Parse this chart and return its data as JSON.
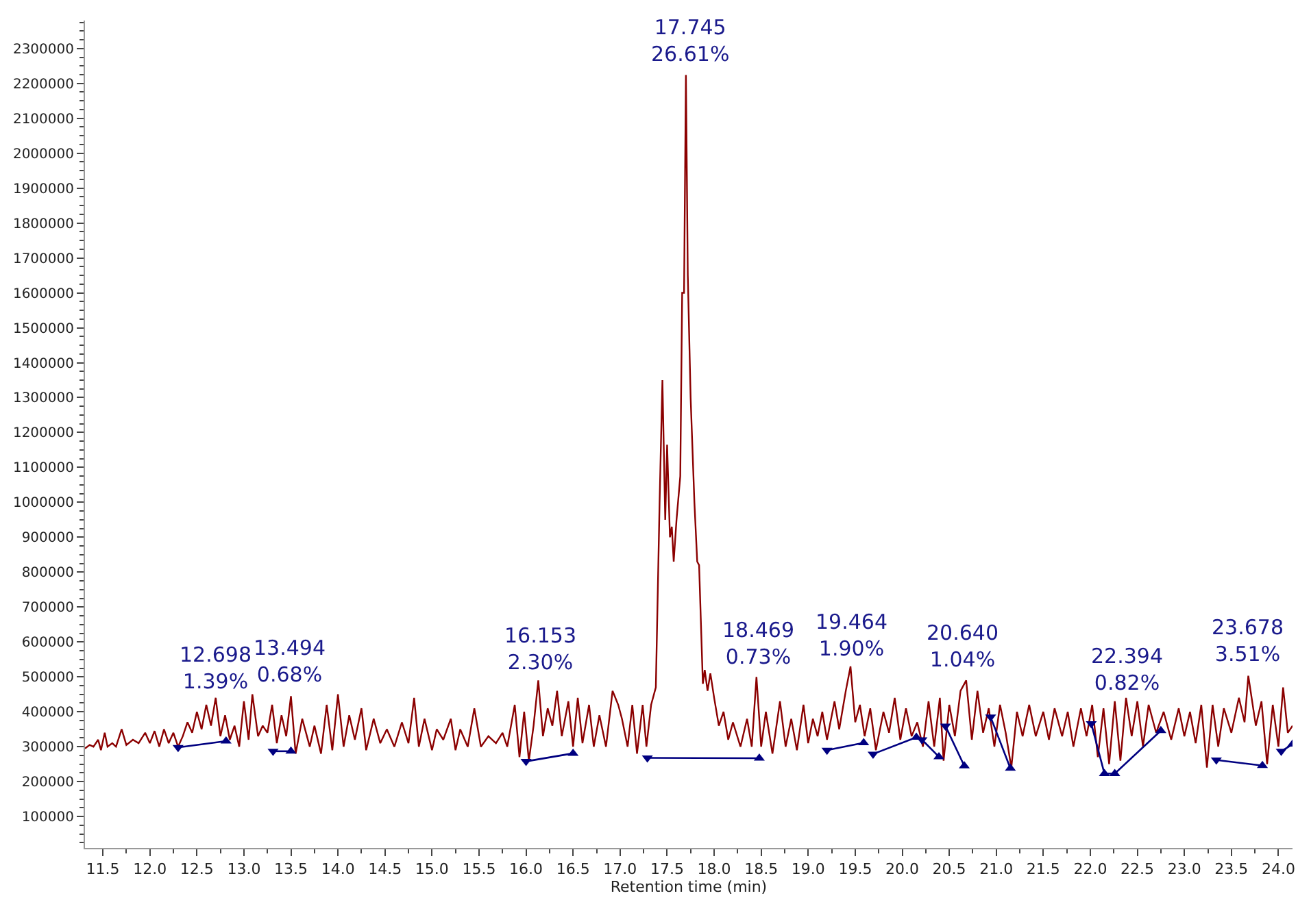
{
  "chart_data": {
    "type": "line",
    "xlabel": "Retention time (min)",
    "xlim": [
      11.31,
      24.15
    ],
    "ylim": [
      10000,
      2380000
    ],
    "xticks": [
      11.5,
      {
        "value": 12,
        "label": "12.0"
      },
      12.5,
      {
        "value": 13,
        "label": "13.0"
      },
      13.5,
      {
        "value": 14,
        "label": "14.0"
      },
      14.5,
      {
        "value": 15,
        "label": "15.0"
      },
      15.5,
      {
        "value": 16,
        "label": "16.0"
      },
      16.5,
      {
        "value": 17,
        "label": "17.0"
      },
      17.5,
      {
        "value": 18,
        "label": "18.0"
      },
      18.5,
      {
        "value": 19,
        "label": "19.0"
      },
      19.5,
      {
        "value": 20,
        "label": "20.0"
      },
      20.5,
      {
        "value": 21,
        "label": "21.0"
      },
      21.5,
      {
        "value": 22,
        "label": "22.0"
      },
      22.5,
      {
        "value": 23,
        "label": "23.0"
      },
      23.5,
      {
        "value": 24,
        "label": "24.0"
      }
    ],
    "yticks": [
      100000,
      200000,
      300000,
      400000,
      500000,
      600000,
      700000,
      800000,
      900000,
      1000000,
      1100000,
      1200000,
      1300000,
      1400000,
      1500000,
      1600000,
      1700000,
      1800000,
      1900000,
      2000000,
      2100000,
      2200000,
      2300000
    ],
    "series": [
      {
        "color": "#8b0000",
        "marker": "none",
        "x": [
          11.31,
          11.36,
          11.4,
          11.45,
          11.48,
          11.52,
          11.55,
          11.6,
          11.64,
          11.7,
          11.75,
          11.82,
          11.88,
          11.95,
          12.0,
          12.05,
          12.1,
          12.15,
          12.2,
          12.25,
          12.3,
          12.35,
          12.4,
          12.45,
          12.5,
          12.55,
          12.6,
          12.65,
          12.7,
          12.75,
          12.8,
          12.85,
          12.9,
          12.95,
          13.0,
          13.05,
          13.09,
          13.15,
          13.2,
          13.25,
          13.3,
          13.35,
          13.4,
          13.45,
          13.5,
          13.55,
          13.62,
          13.7,
          13.75,
          13.82,
          13.88,
          13.94,
          14.0,
          14.06,
          14.12,
          14.18,
          14.25,
          14.3,
          14.38,
          14.45,
          14.52,
          14.6,
          14.68,
          14.75,
          14.81,
          14.86,
          14.92,
          15.0,
          15.05,
          15.12,
          15.2,
          15.25,
          15.3,
          15.38,
          15.45,
          15.52,
          15.6,
          15.68,
          15.75,
          15.8,
          15.88,
          15.93,
          15.98,
          16.03,
          16.08,
          16.13,
          16.18,
          16.23,
          16.28,
          16.33,
          16.38,
          16.45,
          16.5,
          16.55,
          16.6,
          16.67,
          16.72,
          16.78,
          16.85,
          16.92,
          16.98,
          17.02,
          17.08,
          17.13,
          17.18,
          17.24,
          17.28,
          17.33,
          17.38,
          17.42,
          17.45,
          17.48,
          17.5,
          17.53,
          17.55,
          17.57,
          17.6,
          17.64,
          17.66,
          17.68,
          17.7,
          17.72,
          17.75,
          17.79,
          17.82,
          17.84,
          17.86,
          17.88,
          17.9,
          17.93,
          17.96,
          18.0,
          18.05,
          18.1,
          18.15,
          18.2,
          18.28,
          18.35,
          18.4,
          18.45,
          18.5,
          18.55,
          18.62,
          18.7,
          18.76,
          18.82,
          18.88,
          18.95,
          19.0,
          19.05,
          19.1,
          19.15,
          19.2,
          19.28,
          19.33,
          19.4,
          19.45,
          19.5,
          19.55,
          19.6,
          19.66,
          19.72,
          19.8,
          19.86,
          19.92,
          19.98,
          20.04,
          20.1,
          20.16,
          20.22,
          20.28,
          20.34,
          20.4,
          20.44,
          20.5,
          20.56,
          20.62,
          20.68,
          20.74,
          20.8,
          20.86,
          20.92,
          20.98,
          21.04,
          21.1,
          21.16,
          21.22,
          21.28,
          21.35,
          21.42,
          21.5,
          21.56,
          21.62,
          21.7,
          21.76,
          21.82,
          21.9,
          21.96,
          22.02,
          22.08,
          22.14,
          22.2,
          22.26,
          22.32,
          22.38,
          22.44,
          22.5,
          22.56,
          22.62,
          22.7,
          22.78,
          22.86,
          22.94,
          23.0,
          23.06,
          23.12,
          23.18,
          23.24,
          23.3,
          23.36,
          23.42,
          23.5,
          23.58,
          23.64,
          23.68,
          23.76,
          23.82,
          23.88,
          23.94,
          24.0,
          24.05,
          24.1,
          24.15
        ],
        "values": [
          295000,
          305000,
          300000,
          320000,
          290000,
          340000,
          300000,
          310000,
          300000,
          350000,
          305000,
          320000,
          310000,
          340000,
          310000,
          345000,
          300000,
          350000,
          310000,
          340000,
          300000,
          330000,
          370000,
          340000,
          400000,
          350000,
          420000,
          360000,
          440000,
          330000,
          390000,
          320000,
          360000,
          300000,
          430000,
          320000,
          450000,
          330000,
          360000,
          340000,
          420000,
          310000,
          390000,
          330000,
          445000,
          280000,
          380000,
          300000,
          360000,
          280000,
          420000,
          290000,
          450000,
          300000,
          390000,
          320000,
          410000,
          290000,
          380000,
          310000,
          350000,
          300000,
          370000,
          310000,
          440000,
          300000,
          380000,
          290000,
          350000,
          320000,
          380000,
          290000,
          350000,
          300000,
          410000,
          300000,
          330000,
          310000,
          340000,
          300000,
          420000,
          270000,
          400000,
          260000,
          360000,
          490000,
          330000,
          410000,
          360000,
          460000,
          330000,
          430000,
          300000,
          440000,
          310000,
          420000,
          300000,
          390000,
          300000,
          460000,
          420000,
          380000,
          300000,
          420000,
          280000,
          420000,
          300000,
          420000,
          470000,
          1000000,
          1350000,
          950000,
          1165000,
          900000,
          930000,
          830000,
          950000,
          1075000,
          1600000,
          1600000,
          2224000,
          1650000,
          1300000,
          1000000,
          830000,
          820000,
          650000,
          480000,
          520000,
          460000,
          510000,
          440000,
          360000,
          400000,
          320000,
          370000,
          300000,
          380000,
          300000,
          500000,
          300000,
          400000,
          280000,
          430000,
          300000,
          380000,
          290000,
          420000,
          310000,
          380000,
          330000,
          400000,
          320000,
          430000,
          350000,
          460000,
          530000,
          370000,
          420000,
          330000,
          410000,
          290000,
          400000,
          340000,
          440000,
          320000,
          410000,
          330000,
          370000,
          300000,
          430000,
          300000,
          440000,
          260000,
          420000,
          330000,
          460000,
          490000,
          320000,
          460000,
          340000,
          410000,
          300000,
          420000,
          340000,
          240000,
          400000,
          330000,
          420000,
          330000,
          400000,
          320000,
          410000,
          330000,
          400000,
          300000,
          410000,
          330000,
          420000,
          270000,
          410000,
          250000,
          430000,
          260000,
          440000,
          330000,
          430000,
          300000,
          420000,
          340000,
          400000,
          320000,
          410000,
          330000,
          400000,
          310000,
          420000,
          240000,
          420000,
          300000,
          410000,
          340000,
          440000,
          370000,
          503000,
          360000,
          430000,
          250000,
          420000,
          300000,
          470000,
          340000,
          360000
        ]
      },
      {
        "color": "#000080",
        "marker": "triangle",
        "x": [
          12.3,
          12.81,
          null,
          13.31,
          13.5,
          null,
          16.0,
          16.5,
          null,
          17.29,
          18.48,
          null,
          19.2,
          19.59,
          null,
          19.69,
          20.15,
          null,
          20.21,
          20.39,
          null,
          20.46,
          20.66,
          null,
          20.94,
          21.15,
          null,
          22.01,
          22.15,
          22.26,
          22.75,
          null,
          23.34,
          23.83,
          null,
          24.03,
          24.15
        ],
        "values": [
          298000,
          316000,
          null,
          287000,
          287000,
          null,
          258000,
          281000,
          null,
          268000,
          267000,
          null,
          290000,
          311000,
          null,
          279000,
          327000,
          null,
          320000,
          271000,
          null,
          359000,
          245000,
          null,
          385000,
          238000,
          null,
          366000,
          223000,
          223000,
          346000,
          null,
          262000,
          246000,
          null,
          287000,
          307000
        ]
      }
    ],
    "annotations": [
      {
        "text": "12.698\n1.39%",
        "x": 12.698,
        "y": 427000
      },
      {
        "text": "13.494\n0.68%",
        "x": 13.494,
        "y": 444000
      },
      {
        "text": "16.153\n2.30%",
        "x": 16.153,
        "y": 479000
      },
      {
        "text": "17.745\n26.61%",
        "x": 17.745,
        "y": 2224000
      },
      {
        "text": "18.469\n0.73%",
        "x": 18.469,
        "y": 496000
      },
      {
        "text": "19.464\n1.90%",
        "x": 19.464,
        "y": 522000
      },
      {
        "text": "20.640\n1.04%",
        "x": 20.64,
        "y": 489000
      },
      {
        "text": "22.394\n0.82%",
        "x": 22.394,
        "y": 422000
      },
      {
        "text": "23.678\n3.51%",
        "x": 23.678,
        "y": 503000
      }
    ]
  }
}
